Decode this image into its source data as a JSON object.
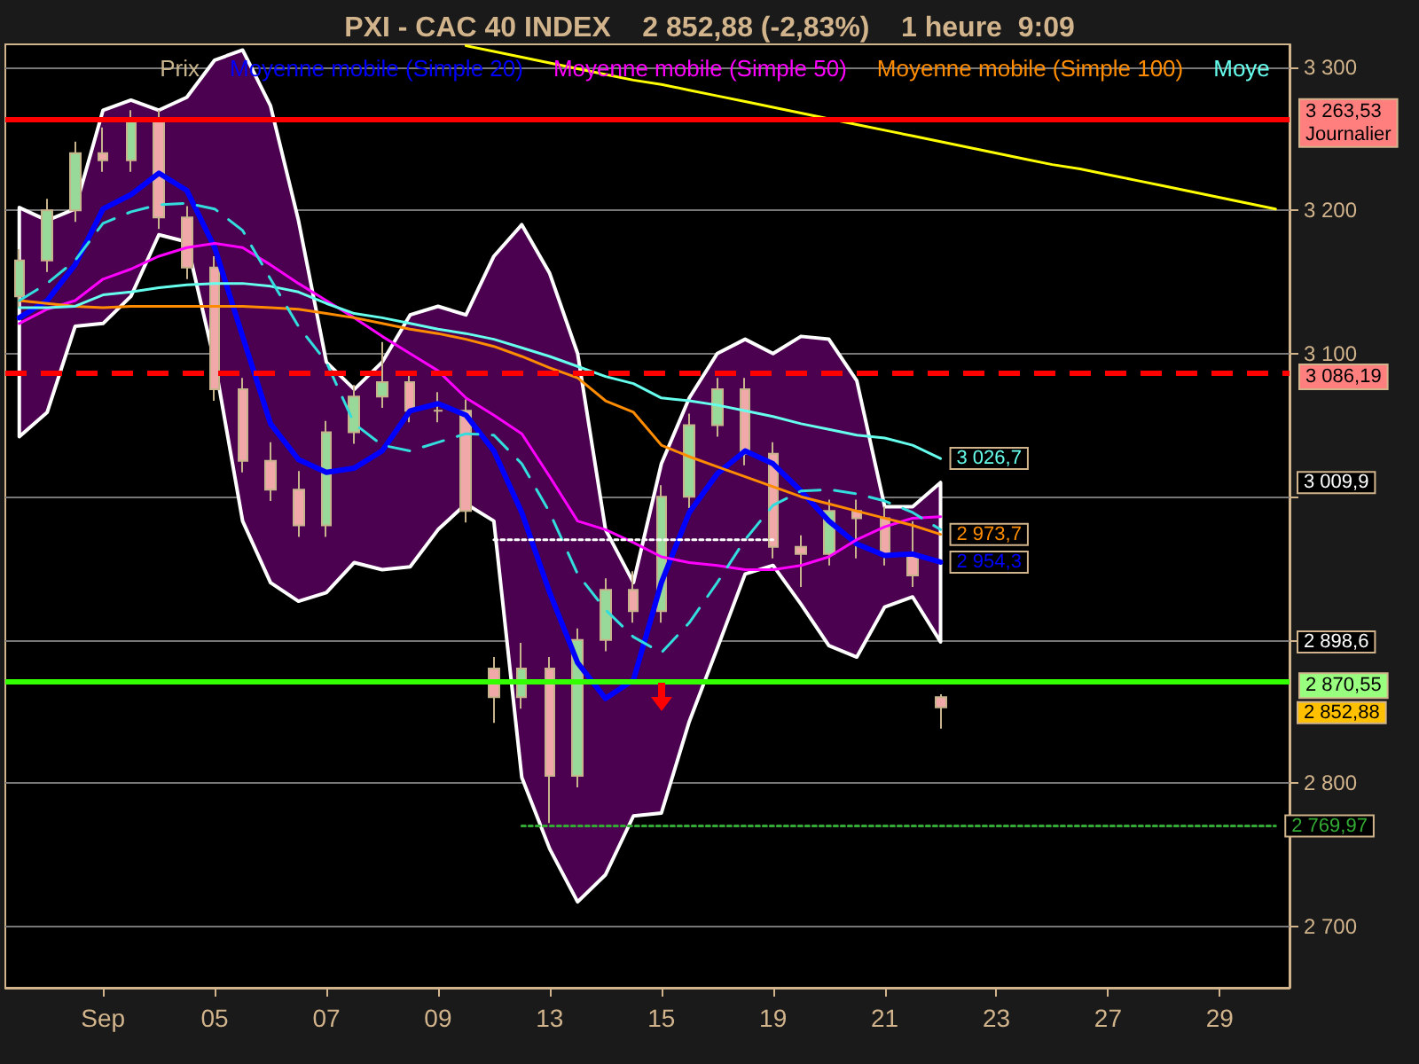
{
  "chart_data": {
    "type": "candlestick",
    "title": "PXI - CAC 40 INDEX    2 852,88 (-2,83%)    1 heure  9:09",
    "categories": [
      null,
      null,
      null,
      "Sep",
      null,
      null,
      null,
      "05",
      null,
      null,
      null,
      "07",
      null,
      null,
      null,
      "09",
      null,
      null,
      null,
      "13",
      null,
      null,
      null,
      "15",
      null,
      null,
      null,
      "19",
      null,
      null,
      null,
      "21",
      null,
      null,
      null,
      "23",
      null,
      null,
      null,
      "27",
      null,
      null,
      null,
      "29",
      null,
      null
    ],
    "series": [
      {
        "type": "candlestick",
        "name": "Prix",
        "color": "#c8b48c",
        "ohlc": [
          [
            3140,
            3173,
            3132,
            3165
          ],
          [
            3165,
            3208,
            3157,
            3200
          ],
          [
            3200,
            3248,
            3192,
            3240
          ],
          [
            3240,
            3258,
            3227,
            3235
          ],
          [
            3235,
            3270,
            3227,
            3262
          ],
          [
            3262,
            3270,
            3187,
            3195
          ],
          [
            3195,
            3203,
            3152,
            3160
          ],
          [
            3160,
            3168,
            3067,
            3075
          ],
          [
            3075,
            3083,
            3017,
            3025
          ],
          [
            3025,
            3038,
            2997,
            3005
          ],
          [
            3005,
            3018,
            2972,
            2980
          ],
          [
            2980,
            3053,
            2972,
            3045
          ],
          [
            3045,
            3078,
            3037,
            3070
          ],
          [
            3070,
            3108,
            3062,
            3080
          ],
          [
            3080,
            3088,
            3052,
            3060
          ],
          [
            3060,
            3073,
            3052,
            3060
          ],
          [
            3060,
            3068,
            2982,
            2990
          ],
          [
            2880,
            2888,
            2842,
            2860
          ],
          [
            2860,
            2898,
            2852,
            2880
          ],
          [
            2880,
            2888,
            2772,
            2805
          ],
          [
            2805,
            2908,
            2797,
            2900
          ],
          [
            2900,
            2943,
            2892,
            2935
          ],
          [
            2935,
            2948,
            2912,
            2920
          ],
          [
            2920,
            3008,
            2912,
            3000
          ],
          [
            3000,
            3058,
            2992,
            3050
          ],
          [
            3050,
            3083,
            3042,
            3075
          ],
          [
            3075,
            3083,
            3022,
            3030
          ],
          [
            3030,
            3038,
            2957,
            2965
          ],
          [
            2965,
            2973,
            2937,
            2960
          ],
          [
            2960,
            2998,
            2952,
            2990
          ],
          [
            2990,
            2998,
            2957,
            2985
          ],
          [
            2985,
            2993,
            2952,
            2960
          ],
          [
            2960,
            2983,
            2937,
            2945
          ],
          [
            2860,
            2862,
            2838,
            2852.88
          ],
          null,
          null,
          null,
          null,
          null,
          null,
          null,
          null,
          null,
          null,
          null,
          null
        ],
        "value_labels": [
          null,
          null,
          null,
          null,
          null,
          null,
          null,
          null,
          null,
          null,
          null,
          null,
          null,
          null,
          null,
          null,
          null,
          null,
          null,
          null,
          null,
          null,
          null,
          null,
          null,
          null,
          null,
          null,
          null,
          null,
          null,
          null,
          null,
          "2 852,88",
          null,
          null,
          null,
          null,
          null,
          null,
          null,
          null,
          null,
          null,
          null,
          null
        ]
      },
      {
        "type": "line",
        "name": "Moyenne mobile (Simple 20)",
        "color": "#0000ff",
        "values": [
          3125,
          3137,
          3162,
          3201,
          3211,
          3226,
          3214,
          3174,
          3112,
          3051,
          3026,
          3017,
          3020,
          3032,
          3060,
          3065,
          3057,
          3032,
          2989,
          2933,
          2884,
          2859,
          2872,
          2940,
          2989,
          3016,
          3032,
          3023,
          3004,
          2983,
          2967,
          2959,
          2960,
          2954.3,
          null,
          null,
          null,
          null,
          null,
          null,
          null,
          null,
          null,
          null,
          null,
          null
        ],
        "upper": [
          3202,
          3193,
          3201,
          3270,
          3277,
          3270,
          3279,
          3305,
          3312,
          3273,
          3193,
          3094,
          3075,
          3094,
          3127,
          3133,
          3127,
          3168,
          3190,
          3156,
          3100,
          2977,
          2940,
          3023,
          3069,
          3100,
          3110,
          3100,
          3112,
          3110,
          3081,
          2993,
          2993,
          3009.9,
          null,
          null,
          null,
          null,
          null,
          null,
          null,
          null,
          null,
          null,
          null,
          null
        ],
        "lower": [
          3042,
          3059,
          3119,
          3121,
          3140,
          3183,
          3178,
          3094,
          2983,
          2940,
          2927,
          2933,
          2954,
          2949,
          2951,
          2977,
          2995,
          2983,
          2804,
          2754,
          2717,
          2736,
          2777,
          2779,
          2843,
          2894,
          2946,
          2952,
          2925,
          2896,
          2888,
          2923,
          2930,
          2898.6,
          null,
          null,
          null,
          null,
          null,
          null,
          null,
          null,
          null,
          null,
          null,
          null
        ],
        "value_labels": [
          null,
          null,
          null,
          null,
          null,
          null,
          null,
          null,
          null,
          null,
          null,
          null,
          null,
          null,
          null,
          null,
          null,
          null,
          null,
          null,
          null,
          null,
          null,
          null,
          null,
          null,
          null,
          null,
          null,
          null,
          null,
          null,
          null,
          "2 954,3",
          null,
          null,
          null,
          null,
          null,
          null,
          null,
          null,
          null,
          null,
          null,
          null
        ]
      },
      {
        "type": "line",
        "name": "Moyenne mobile (Simple 50)",
        "color": "#ff00ff",
        "values": [
          3121,
          3131,
          3137,
          3152,
          3159,
          3168,
          3174,
          3177,
          3174,
          3162,
          3149,
          3137,
          3125,
          3112,
          3100,
          3088,
          3069,
          3057,
          3044,
          3014,
          2983,
          2977,
          2968,
          2958,
          2954,
          2952,
          2949,
          2949,
          2952,
          2958,
          2970,
          2979,
          2985,
          2986,
          null,
          null,
          null,
          null,
          null,
          null,
          null,
          null,
          null,
          null,
          null,
          null
        ]
      },
      {
        "type": "line",
        "name": "Moyenne mobile (Simple 100)",
        "color": "#ff8c00",
        "values": [
          3137,
          3135,
          3133,
          3132,
          3133,
          3133,
          3133,
          3133,
          3133,
          3132,
          3131,
          3128,
          3125,
          3121,
          3117,
          3114,
          3110,
          3105,
          3098,
          3090,
          3083,
          3067,
          3059,
          3036,
          3028,
          3021,
          3014,
          3007,
          3000,
          2995,
          2990,
          2985,
          2980,
          2973.7,
          null,
          null,
          null,
          null,
          null,
          null,
          null,
          null,
          null,
          null,
          null,
          null
        ],
        "value_labels": [
          null,
          null,
          null,
          null,
          null,
          null,
          null,
          null,
          null,
          null,
          null,
          null,
          null,
          null,
          null,
          null,
          null,
          null,
          null,
          null,
          null,
          null,
          null,
          null,
          null,
          null,
          null,
          null,
          null,
          null,
          null,
          null,
          null,
          "2 973,7",
          null,
          null,
          null,
          null,
          null,
          null,
          null,
          null,
          null,
          null,
          null,
          null
        ]
      },
      {
        "type": "line",
        "name": "Moye",
        "color": "#66ffee",
        "values": [
          3132,
          3132,
          3133,
          3141,
          3143,
          3146,
          3148,
          3149,
          3149,
          3147,
          3143,
          3135,
          3128,
          3125,
          3121,
          3117,
          3114,
          3110,
          3104,
          3098,
          3091,
          3084,
          3079,
          3069,
          3067,
          3064,
          3060,
          3056,
          3051,
          3047,
          3043,
          3041,
          3036,
          3026.7,
          null,
          null,
          null,
          null,
          null,
          null,
          null,
          null,
          null,
          null,
          null,
          null
        ],
        "value_labels": [
          null,
          null,
          null,
          null,
          null,
          null,
          null,
          null,
          null,
          null,
          null,
          null,
          null,
          null,
          null,
          null,
          null,
          null,
          null,
          null,
          null,
          null,
          null,
          null,
          null,
          null,
          null,
          null,
          null,
          null,
          null,
          null,
          null,
          "3 026,7",
          null,
          null,
          null,
          null,
          null,
          null,
          null,
          null,
          null,
          null,
          null,
          null
        ]
      },
      {
        "type": "line",
        "color": "#33dddd",
        "line_style": "dashed",
        "values": [
          3137,
          3149,
          3165,
          3191,
          3199,
          3204,
          3205,
          3201,
          3186,
          3152,
          3119,
          3094,
          3051,
          3036,
          3032,
          3038,
          3044,
          3043,
          3023,
          2989,
          2946,
          2921,
          2902,
          2891,
          2912,
          2940,
          2970,
          2994,
          3004,
          3005,
          3002,
          2997,
          2989,
          2977,
          null,
          null,
          null,
          null,
          null,
          null,
          null,
          null,
          null,
          null,
          null,
          null
        ]
      },
      {
        "type": "line",
        "color": "#ffff00",
        "values": [
          null,
          null,
          null,
          null,
          null,
          null,
          null,
          null,
          null,
          null,
          null,
          null,
          null,
          null,
          null,
          null,
          3315,
          3311,
          3307,
          3303,
          3299,
          3295,
          3291,
          3288,
          3284,
          3280,
          3276,
          3272,
          3268,
          3264,
          3260,
          3256,
          3252,
          3248,
          3244,
          3240,
          3236,
          3232,
          3229,
          3225,
          3221,
          3217,
          3213,
          3209,
          3205,
          3201
        ]
      },
      {
        "type": "line",
        "color": "#ffffff",
        "line_style": "dotted",
        "values": [
          null,
          null,
          null,
          null,
          null,
          null,
          null,
          null,
          null,
          null,
          null,
          null,
          null,
          null,
          null,
          null,
          null,
          2970,
          2970,
          2970,
          2970,
          2970,
          2970,
          2970,
          2970,
          2970,
          2970,
          2970,
          null,
          null,
          null,
          null,
          null,
          null,
          null,
          null,
          null,
          null,
          null,
          null,
          null,
          null,
          null,
          null,
          null,
          null
        ]
      },
      {
        "type": "line",
        "color": "#33aa33",
        "line_style": "dotted",
        "values": [
          null,
          null,
          null,
          null,
          null,
          null,
          null,
          null,
          null,
          null,
          null,
          null,
          null,
          null,
          null,
          null,
          null,
          null,
          2769.97,
          2769.97,
          2769.97,
          2769.97,
          2769.97,
          2769.97,
          2769.97,
          2769.97,
          2769.97,
          2769.97,
          2769.97,
          2769.97,
          2769.97,
          2769.97,
          2769.97,
          2769.97,
          2769.97,
          2769.97,
          2769.97,
          2769.97,
          2769.97,
          2769.97,
          2769.97,
          2769.97,
          2769.97,
          2769.97,
          2769.97,
          2769.97
        ],
        "value_labels": [
          null,
          null,
          null,
          null,
          null,
          null,
          null,
          null,
          null,
          null,
          null,
          null,
          null,
          null,
          null,
          null,
          null,
          null,
          null,
          null,
          null,
          null,
          null,
          null,
          null,
          null,
          null,
          null,
          null,
          null,
          null,
          null,
          null,
          null,
          null,
          null,
          null,
          null,
          null,
          null,
          null,
          null,
          null,
          null,
          null,
          "2 769,97"
        ]
      }
    ],
    "ref_lines": [
      {
        "axis": "y",
        "value": 3263.53,
        "label": "3 263,53\nJournalier",
        "color": "#ff0000",
        "line_style": "solid"
      },
      {
        "axis": "y",
        "value": 3086.19,
        "label": "3 086,19",
        "color": "#ff0000",
        "line_style": "dashed"
      },
      {
        "axis": "y",
        "value": 2870.55,
        "label": "2 870,55",
        "color": "#33ff00",
        "line_style": "solid"
      }
    ],
    "annotations": [
      "3 009,9",
      "2 898,6"
    ],
    "ylim": [
      2657,
      3316
    ],
    "yticks": [
      {
        "value": 2700,
        "label": "2 700"
      },
      {
        "value": 2800,
        "label": "2 800"
      },
      {
        "value": 2900,
        "label": null
      },
      {
        "value": 3000,
        "label": null
      },
      {
        "value": 3100,
        "label": "3 100"
      },
      {
        "value": 3200,
        "label": "3 200"
      },
      {
        "value": 3300,
        "label": "3 300"
      }
    ],
    "grid": "y",
    "legend": "top",
    "marker": "none"
  }
}
